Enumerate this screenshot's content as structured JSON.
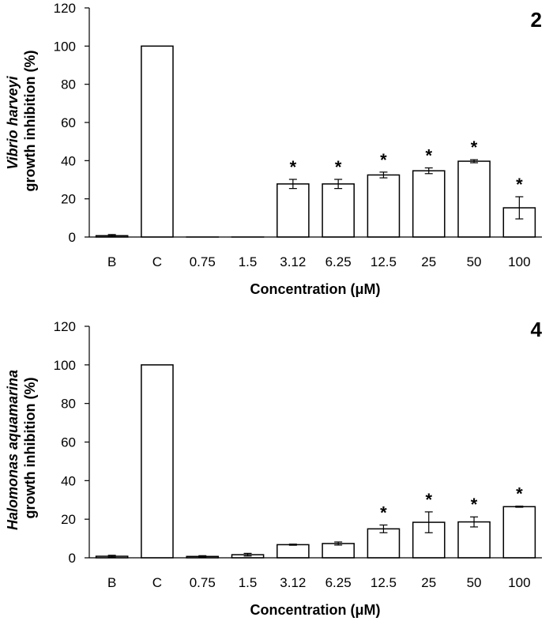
{
  "chart_data": [
    {
      "type": "bar",
      "panel_label": "2",
      "categories": [
        "B",
        "C",
        "0.75",
        "1.5",
        "3.12",
        "6.25",
        "12.5",
        "25",
        "50",
        "100"
      ],
      "values": [
        0.7,
        100,
        0,
        0,
        27.8,
        27.8,
        32.5,
        34.7,
        39.7,
        15.3
      ],
      "errors": [
        0.6,
        0,
        0,
        0,
        2.4,
        2.4,
        1.5,
        1.5,
        0.8,
        5.8
      ],
      "significant": [
        false,
        false,
        false,
        false,
        true,
        true,
        true,
        true,
        true,
        true
      ],
      "significance_marker": "*",
      "xlabel": "Concentration (μM)",
      "ylabel_species": "Vibrio harveyi",
      "ylabel": "growth inhibition (%)",
      "ylim": [
        0,
        120
      ],
      "yticks": [
        "0",
        "20",
        "40",
        "60",
        "80",
        "100",
        "120"
      ],
      "grid": false,
      "bar_fill": "#ffffff",
      "bar_stroke": "#000000"
    },
    {
      "type": "bar",
      "panel_label": "4",
      "categories": [
        "B",
        "C",
        "0.75",
        "1.5",
        "3.12",
        "6.25",
        "12.5",
        "25",
        "50",
        "100"
      ],
      "values": [
        0.8,
        100,
        0.7,
        1.6,
        6.8,
        7.4,
        15.0,
        18.4,
        18.6,
        26.5
      ],
      "errors": [
        0.5,
        0,
        0.4,
        0.7,
        0.3,
        0.8,
        2.0,
        5.4,
        2.6,
        0.3
      ],
      "significant": [
        false,
        false,
        false,
        false,
        false,
        false,
        true,
        true,
        true,
        true
      ],
      "significance_marker": "*",
      "xlabel": "Concentration (μM)",
      "ylabel_species": "Halomonas aquamarina",
      "ylabel": "growth inhibition (%)",
      "ylim": [
        0,
        120
      ],
      "yticks": [
        "0",
        "20",
        "40",
        "60",
        "80",
        "100",
        "120"
      ],
      "grid": false,
      "bar_fill": "#ffffff",
      "bar_stroke": "#000000"
    }
  ]
}
